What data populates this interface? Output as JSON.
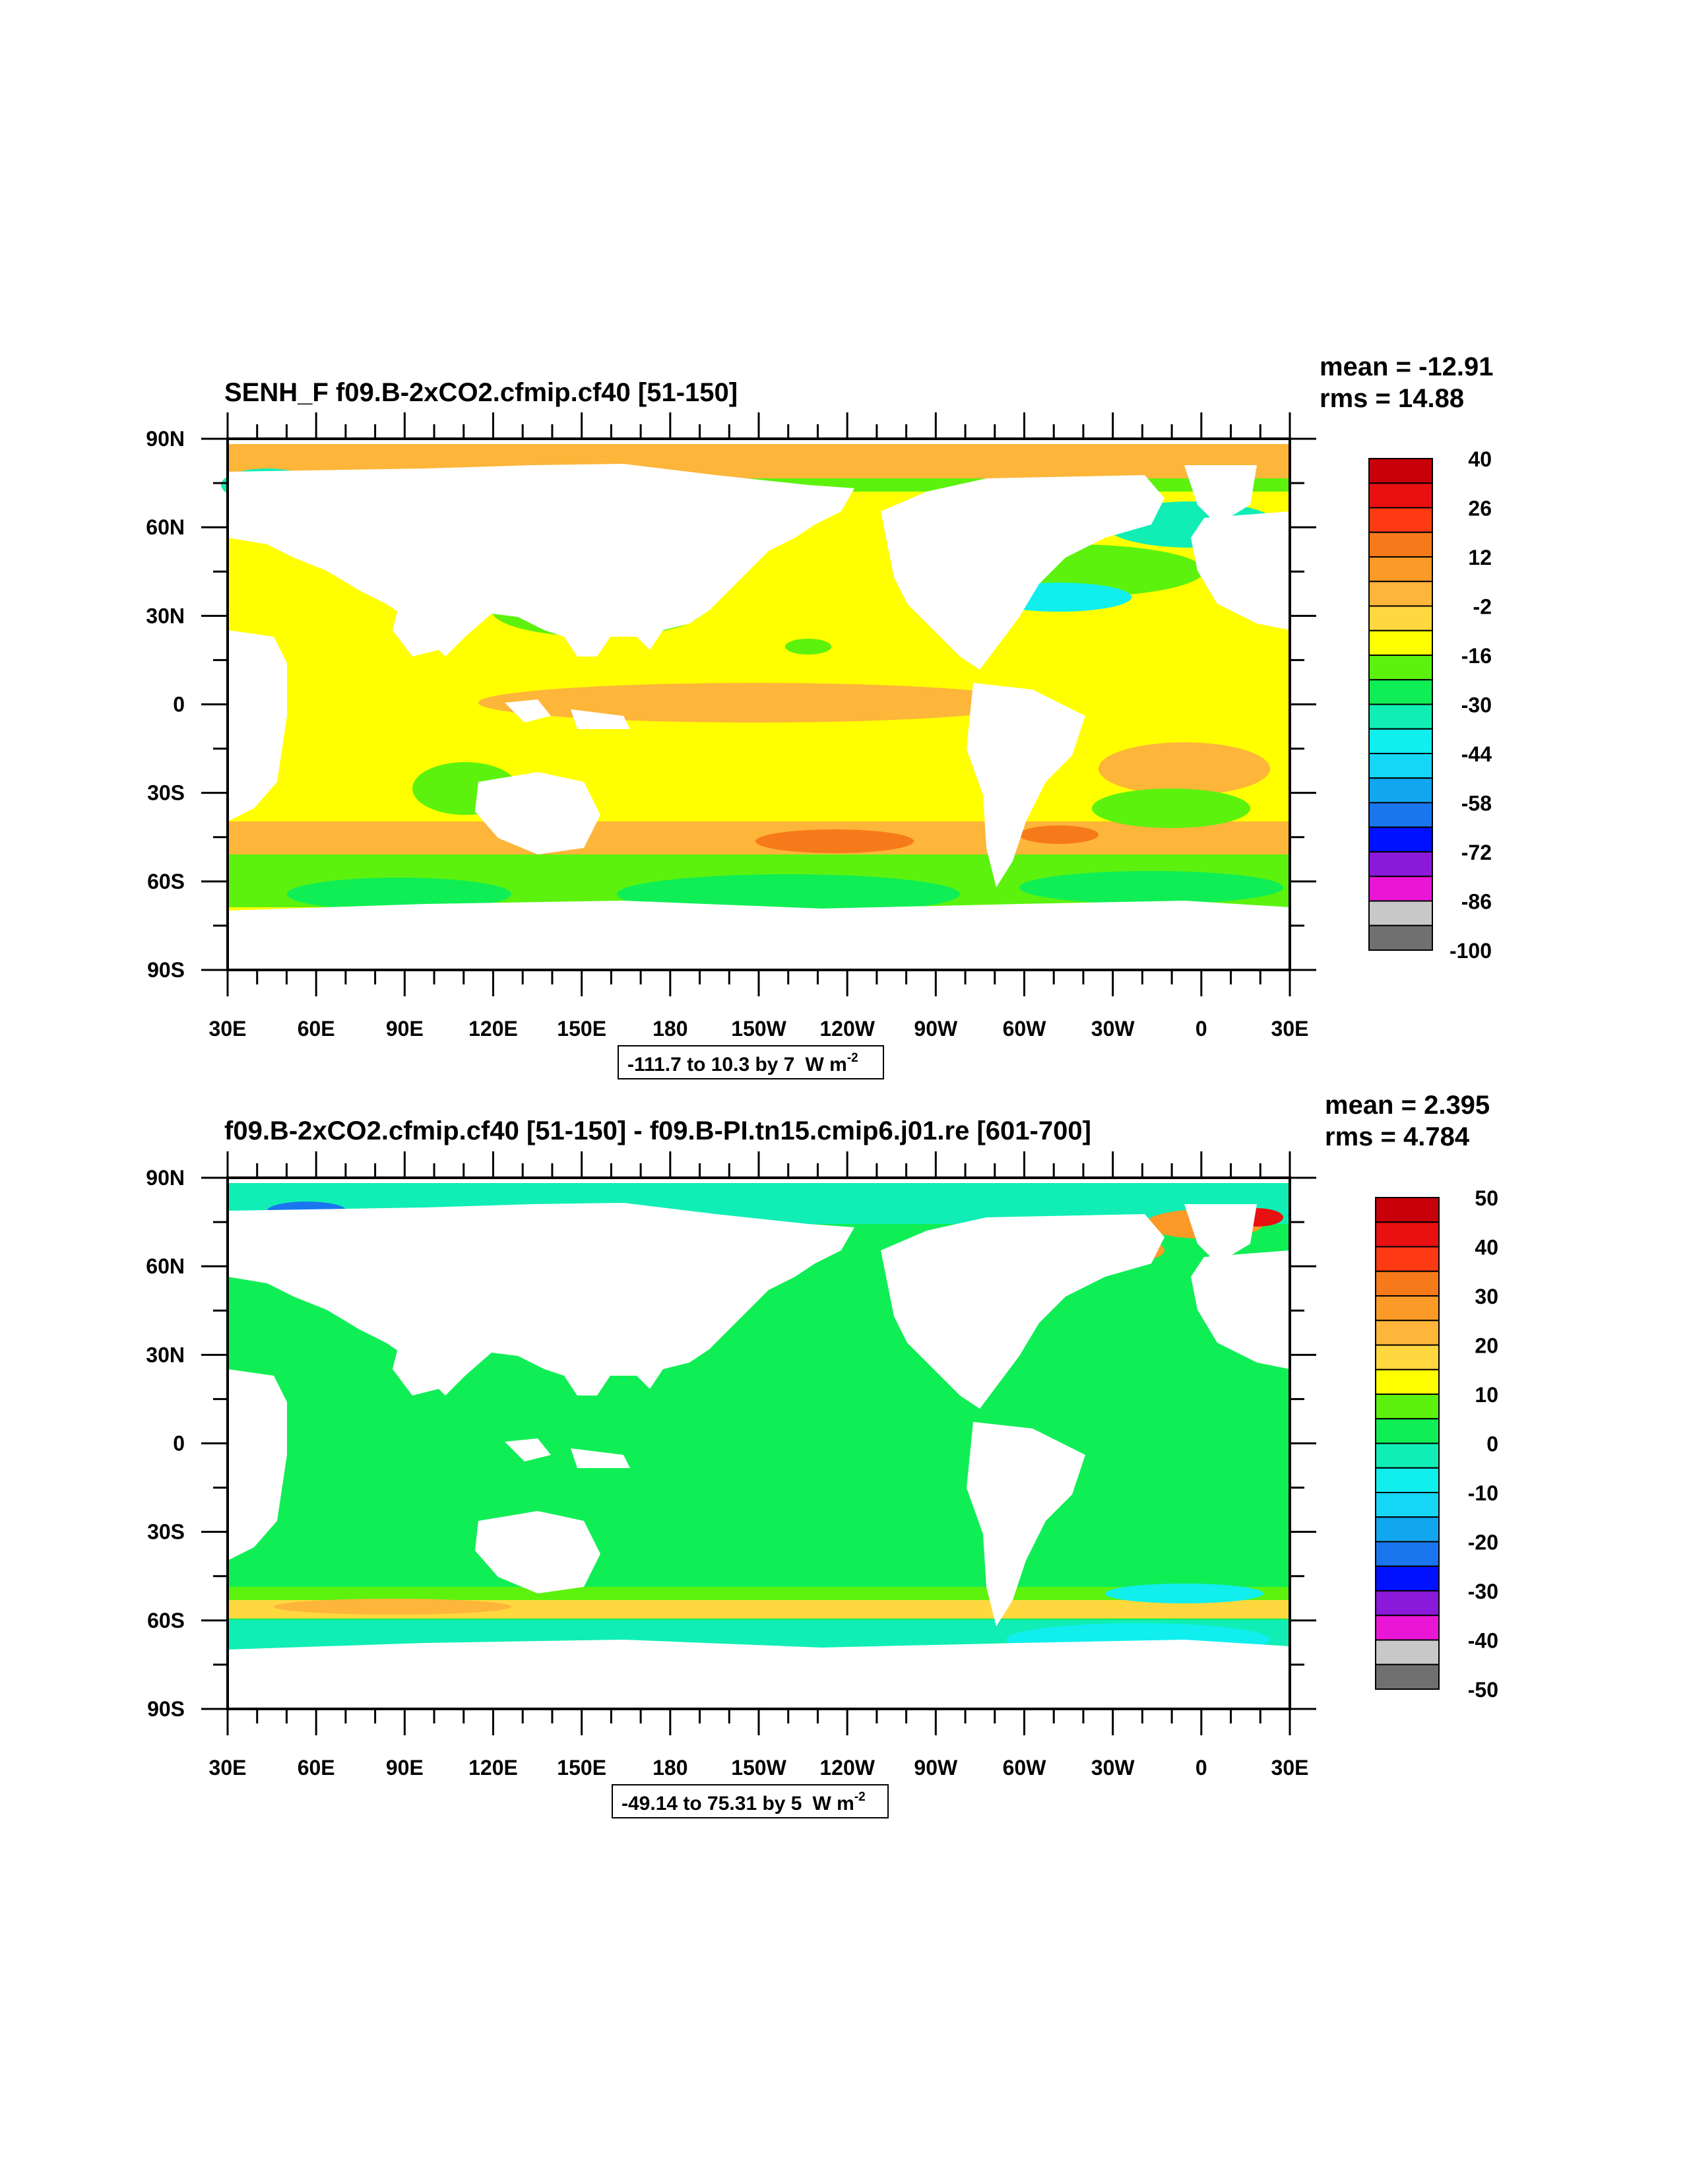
{
  "panels": [
    {
      "title": "SENH_F f09.B-2xCO2.cfmip.cf40 [51-150]",
      "mean_label": "mean = -12.91",
      "rms_label": "rms = 14.88",
      "range_label": "-111.7 to 10.3 by 7",
      "units_base": "W m",
      "units_exp": "-2",
      "colorbar": {
        "labels": [
          "40",
          "26",
          "12",
          "-2",
          "-16",
          "-30",
          "-44",
          "-58",
          "-72",
          "-86",
          "-100"
        ],
        "colors": [
          "#c8000a",
          "#e81010",
          "#fe3a12",
          "#f77a1a",
          "#fb9a26",
          "#fdb53a",
          "#ffd83f",
          "#ffff00",
          "#5cf20e",
          "#10ee55",
          "#10eeb5",
          "#10eeee",
          "#15d6f7",
          "#10a6f0",
          "#1a76ee",
          "#0011ff",
          "#8a19d9",
          "#ea16d6",
          "#c8c8c8",
          "#707070"
        ]
      }
    },
    {
      "title": "f09.B-2xCO2.cfmip.cf40 [51-150] - f09.B-PI.tn15.cmip6.j01.re [601-700]",
      "mean_label": "mean = 2.395",
      "rms_label": "rms = 4.784",
      "range_label": "-49.14 to 75.31 by 5",
      "units_base": "W m",
      "units_exp": "-2",
      "colorbar": {
        "labels": [
          "50",
          "40",
          "30",
          "20",
          "10",
          "0",
          "-10",
          "-20",
          "-30",
          "-40",
          "-50"
        ],
        "colors": [
          "#c8000a",
          "#e81010",
          "#fe3a12",
          "#f77a1a",
          "#fb9a26",
          "#fdb53a",
          "#ffd83f",
          "#ffff00",
          "#5cf20e",
          "#10ee55",
          "#10eeb5",
          "#10eeee",
          "#15d6f7",
          "#10a6f0",
          "#1a76ee",
          "#0011ff",
          "#8a19d9",
          "#ea16d6",
          "#c8c8c8",
          "#707070"
        ]
      }
    }
  ],
  "axes": {
    "lon_labels": [
      "30E",
      "60E",
      "90E",
      "120E",
      "150E",
      "180",
      "150W",
      "120W",
      "90W",
      "60W",
      "30W",
      "0",
      "30E"
    ],
    "lat_labels": [
      "90N",
      "60N",
      "30N",
      "0",
      "30S",
      "60S",
      "90S"
    ]
  },
  "map_colors": {
    "land": "#ffffff",
    "panel1_background": "#ffff00",
    "panel2_background": "#10ee55"
  }
}
